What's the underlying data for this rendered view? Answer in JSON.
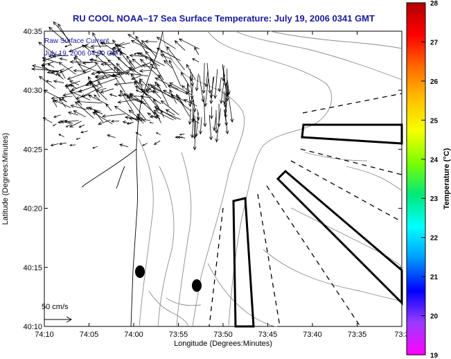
{
  "title": "RU COOL   NOAA–17  Sea Surface Temperature:  July 19, 2006 0341 GMT",
  "info_lines": [
    "Raw Surface Current",
    "July 19, 2006 04:00 GMT"
  ],
  "scale_label": "50 cm/s",
  "colorbar": {
    "label": "Temperature (°C)",
    "min": 19,
    "max": 28,
    "ticks": [
      "19",
      "20",
      "21",
      "22",
      "23",
      "24",
      "25",
      "26",
      "27",
      "28"
    ],
    "colors": [
      "#ff00ff",
      "#9b3cff",
      "#0000ff",
      "#0099ff",
      "#00ffff",
      "#00e87a",
      "#7bff00",
      "#f5ff00",
      "#ffc000",
      "#ff6a00",
      "#ff0000",
      "#b30000"
    ]
  },
  "chart_data": {
    "type": "map",
    "xlabel": "Longitude (Degrees:Minutes)",
    "ylabel": "Latitude (Degrees:Minutes)",
    "x_ticks": [
      "74:10",
      "74:05",
      "74:00",
      "73:55",
      "73:50",
      "73:45",
      "73:40",
      "73:35",
      "73:3"
    ],
    "y_ticks": [
      "40:35",
      "40:30",
      "40:25",
      "40:20",
      "40:15",
      "40:10"
    ],
    "xlim_minutes_west": [
      10,
      30
    ],
    "ylim_minutes_north": [
      10,
      35
    ],
    "sst_fill": "none (cloud/no data)",
    "features": {
      "bathymetry_contours": true,
      "coastline": true,
      "current_vectors": true,
      "shipping_lanes": true,
      "black_dots": 2
    }
  }
}
